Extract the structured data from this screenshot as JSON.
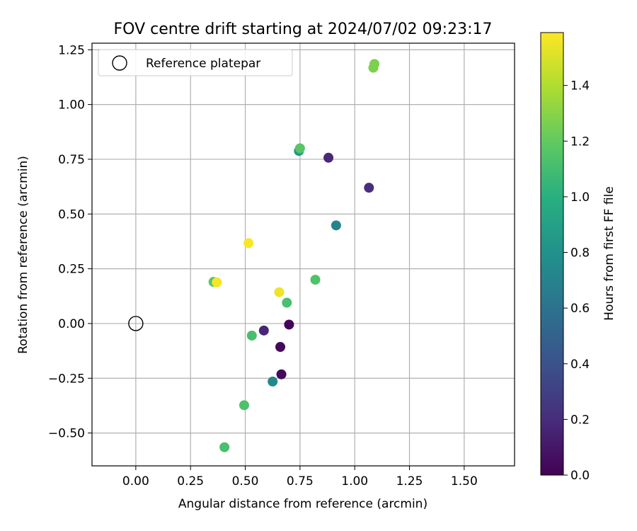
{
  "chart_data": {
    "type": "scatter",
    "title": "FOV centre drift starting at 2024/07/02 09:23:17",
    "xlabel": "Angular distance from reference (arcmin)",
    "ylabel": "Rotation from reference (arcmin)",
    "xlim": [
      -0.2,
      1.73
    ],
    "ylim": [
      -0.65,
      1.28
    ],
    "xticks": [
      "0.00",
      "0.25",
      "0.50",
      "0.75",
      "1.00",
      "1.25",
      "1.50"
    ],
    "yticks": [
      "−0.50",
      "−0.25",
      "0.00",
      "0.25",
      "0.50",
      "0.75",
      "1.00",
      "1.25"
    ],
    "grid": true,
    "legend": {
      "position": "top-left",
      "entries": [
        "Reference platepar"
      ]
    },
    "reference_point": {
      "x": 0.0,
      "y": 0.0
    },
    "colorbar": {
      "label": "Hours from first FF file",
      "colormap": "viridis",
      "range": [
        0.0,
        1.59
      ],
      "ticks": [
        "0.0",
        "0.2",
        "0.4",
        "0.6",
        "0.8",
        "1.0",
        "1.2",
        "1.4"
      ]
    },
    "points": [
      {
        "x": 0.7,
        "y": -0.005,
        "hours": 0.02
      },
      {
        "x": 0.66,
        "y": -0.107,
        "hours": 0.03
      },
      {
        "x": 0.665,
        "y": -0.232,
        "hours": 0.04
      },
      {
        "x": 0.585,
        "y": -0.032,
        "hours": 0.17
      },
      {
        "x": 0.88,
        "y": 0.757,
        "hours": 0.18
      },
      {
        "x": 1.065,
        "y": 0.62,
        "hours": 0.21
      },
      {
        "x": 0.915,
        "y": 0.448,
        "hours": 0.72
      },
      {
        "x": 0.625,
        "y": -0.265,
        "hours": 0.74
      },
      {
        "x": 0.745,
        "y": 0.788,
        "hours": 0.85
      },
      {
        "x": 0.69,
        "y": 0.095,
        "hours": 1.12
      },
      {
        "x": 0.53,
        "y": -0.055,
        "hours": 1.11
      },
      {
        "x": 0.495,
        "y": -0.373,
        "hours": 1.13
      },
      {
        "x": 0.405,
        "y": -0.565,
        "hours": 1.12
      },
      {
        "x": 0.82,
        "y": 0.2,
        "hours": 1.14
      },
      {
        "x": 0.355,
        "y": 0.19,
        "hours": 1.16
      },
      {
        "x": 0.75,
        "y": 0.8,
        "hours": 1.17
      },
      {
        "x": 1.085,
        "y": 1.168,
        "hours": 1.27
      },
      {
        "x": 1.09,
        "y": 1.185,
        "hours": 1.27
      },
      {
        "x": 0.655,
        "y": 0.143,
        "hours": 1.55
      },
      {
        "x": 0.37,
        "y": 0.188,
        "hours": 1.57
      },
      {
        "x": 0.515,
        "y": 0.367,
        "hours": 1.58
      }
    ]
  }
}
